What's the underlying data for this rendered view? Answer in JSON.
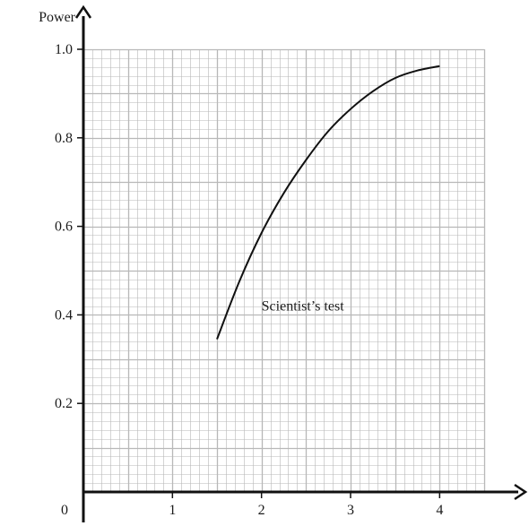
{
  "chart_data": {
    "type": "line",
    "title": "",
    "ylabel": "Power",
    "xlabel": "",
    "origin_label": "0",
    "xlim": [
      0,
      4.5
    ],
    "ylim": [
      0,
      1.0
    ],
    "x_ticks": [
      1,
      2,
      3,
      4
    ],
    "y_ticks": [
      0.2,
      0.4,
      0.6,
      0.8,
      1.0
    ],
    "x_tick_labels": [
      "1",
      "2",
      "3",
      "4"
    ],
    "y_tick_labels": [
      "0.2",
      "0.4",
      "0.6",
      "0.8",
      "1.0"
    ],
    "grid": true,
    "grid_minor_step_x": 0.1,
    "grid_minor_step_y": 0.02,
    "grid_major_step_x": 0.5,
    "grid_major_step_y": 0.1,
    "series": [
      {
        "x": [
          1.5,
          1.75,
          2.0,
          2.25,
          2.5,
          2.75,
          3.0,
          3.25,
          3.5,
          3.75,
          4.0
        ],
        "y": [
          0.345,
          0.475,
          0.585,
          0.675,
          0.75,
          0.815,
          0.865,
          0.905,
          0.935,
          0.952,
          0.962
        ]
      }
    ],
    "annotations": [
      {
        "text": "Scientist’s test",
        "x": 2.0,
        "y": 0.41
      }
    ],
    "colors": {
      "grid": "#b8b8b8",
      "axis": "#111111",
      "line": "#111111"
    }
  }
}
